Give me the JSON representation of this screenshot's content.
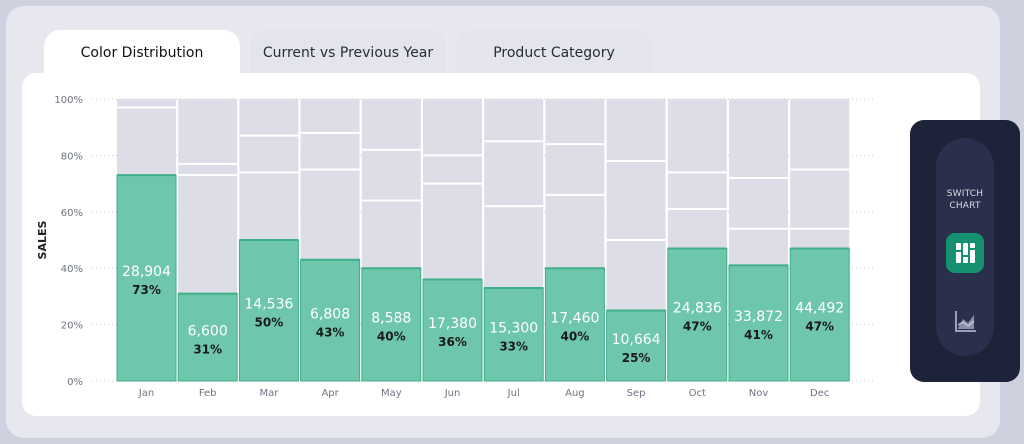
{
  "tabs": [
    {
      "label": "Color Distribution",
      "active": true
    },
    {
      "label": "Current vs Previous Year",
      "active": false
    },
    {
      "label": "Product Category",
      "active": false
    }
  ],
  "switch_panel": {
    "line1": "SWITCH",
    "line2": "CHART",
    "active_icon": "column-chart-icon",
    "inactive_icon": "area-chart-icon"
  },
  "colors": {
    "highlight": "#6ec7ac",
    "highlight_border": "#3fae8a",
    "segment": "#dcdde6",
    "divider": "#ffffff",
    "accent": "#169170",
    "panel": "#1d2338"
  },
  "chart_data": {
    "type": "bar",
    "stacked_percent": true,
    "ylabel": "SALES",
    "xlabel": "",
    "ylim": [
      0,
      100
    ],
    "y_ticks": [
      "0%",
      "20%",
      "40%",
      "60%",
      "80%",
      "100%"
    ],
    "grid": "dotted horizontal",
    "categories": [
      "Jan",
      "Feb",
      "Mar",
      "Apr",
      "May",
      "Jun",
      "Jul",
      "Aug",
      "Sep",
      "Oct",
      "Nov",
      "Dec"
    ],
    "highlight_values": [
      "28,904",
      "6,600",
      "14,536",
      "6,808",
      "8,588",
      "17,380",
      "15,300",
      "17,460",
      "10,664",
      "24,836",
      "33,872",
      "44,492"
    ],
    "highlight_pct": [
      73,
      31,
      50,
      43,
      40,
      36,
      33,
      40,
      25,
      47,
      41,
      47
    ],
    "segment_boundaries_pct": [
      [
        97
      ],
      [
        77,
        73
      ],
      [
        87,
        74
      ],
      [
        88,
        75
      ],
      [
        82,
        64
      ],
      [
        80,
        70
      ],
      [
        85,
        62
      ],
      [
        84,
        66
      ],
      [
        78,
        50
      ],
      [
        74,
        61
      ],
      [
        72,
        54
      ],
      [
        75,
        54
      ]
    ]
  }
}
